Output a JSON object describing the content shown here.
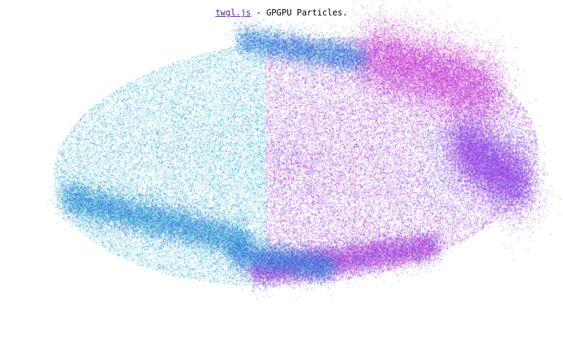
{
  "header": {
    "link_text": "twgl.js",
    "separator": " - ",
    "title": "GPGPU Particles."
  },
  "colors": {
    "background": "#ffffff",
    "link": "#551a8b",
    "particle_cyan": "#3fd6d0",
    "particle_blue": "#3a5be0",
    "particle_magenta": "#e040c8",
    "particle_violet": "#9a3ff0"
  }
}
